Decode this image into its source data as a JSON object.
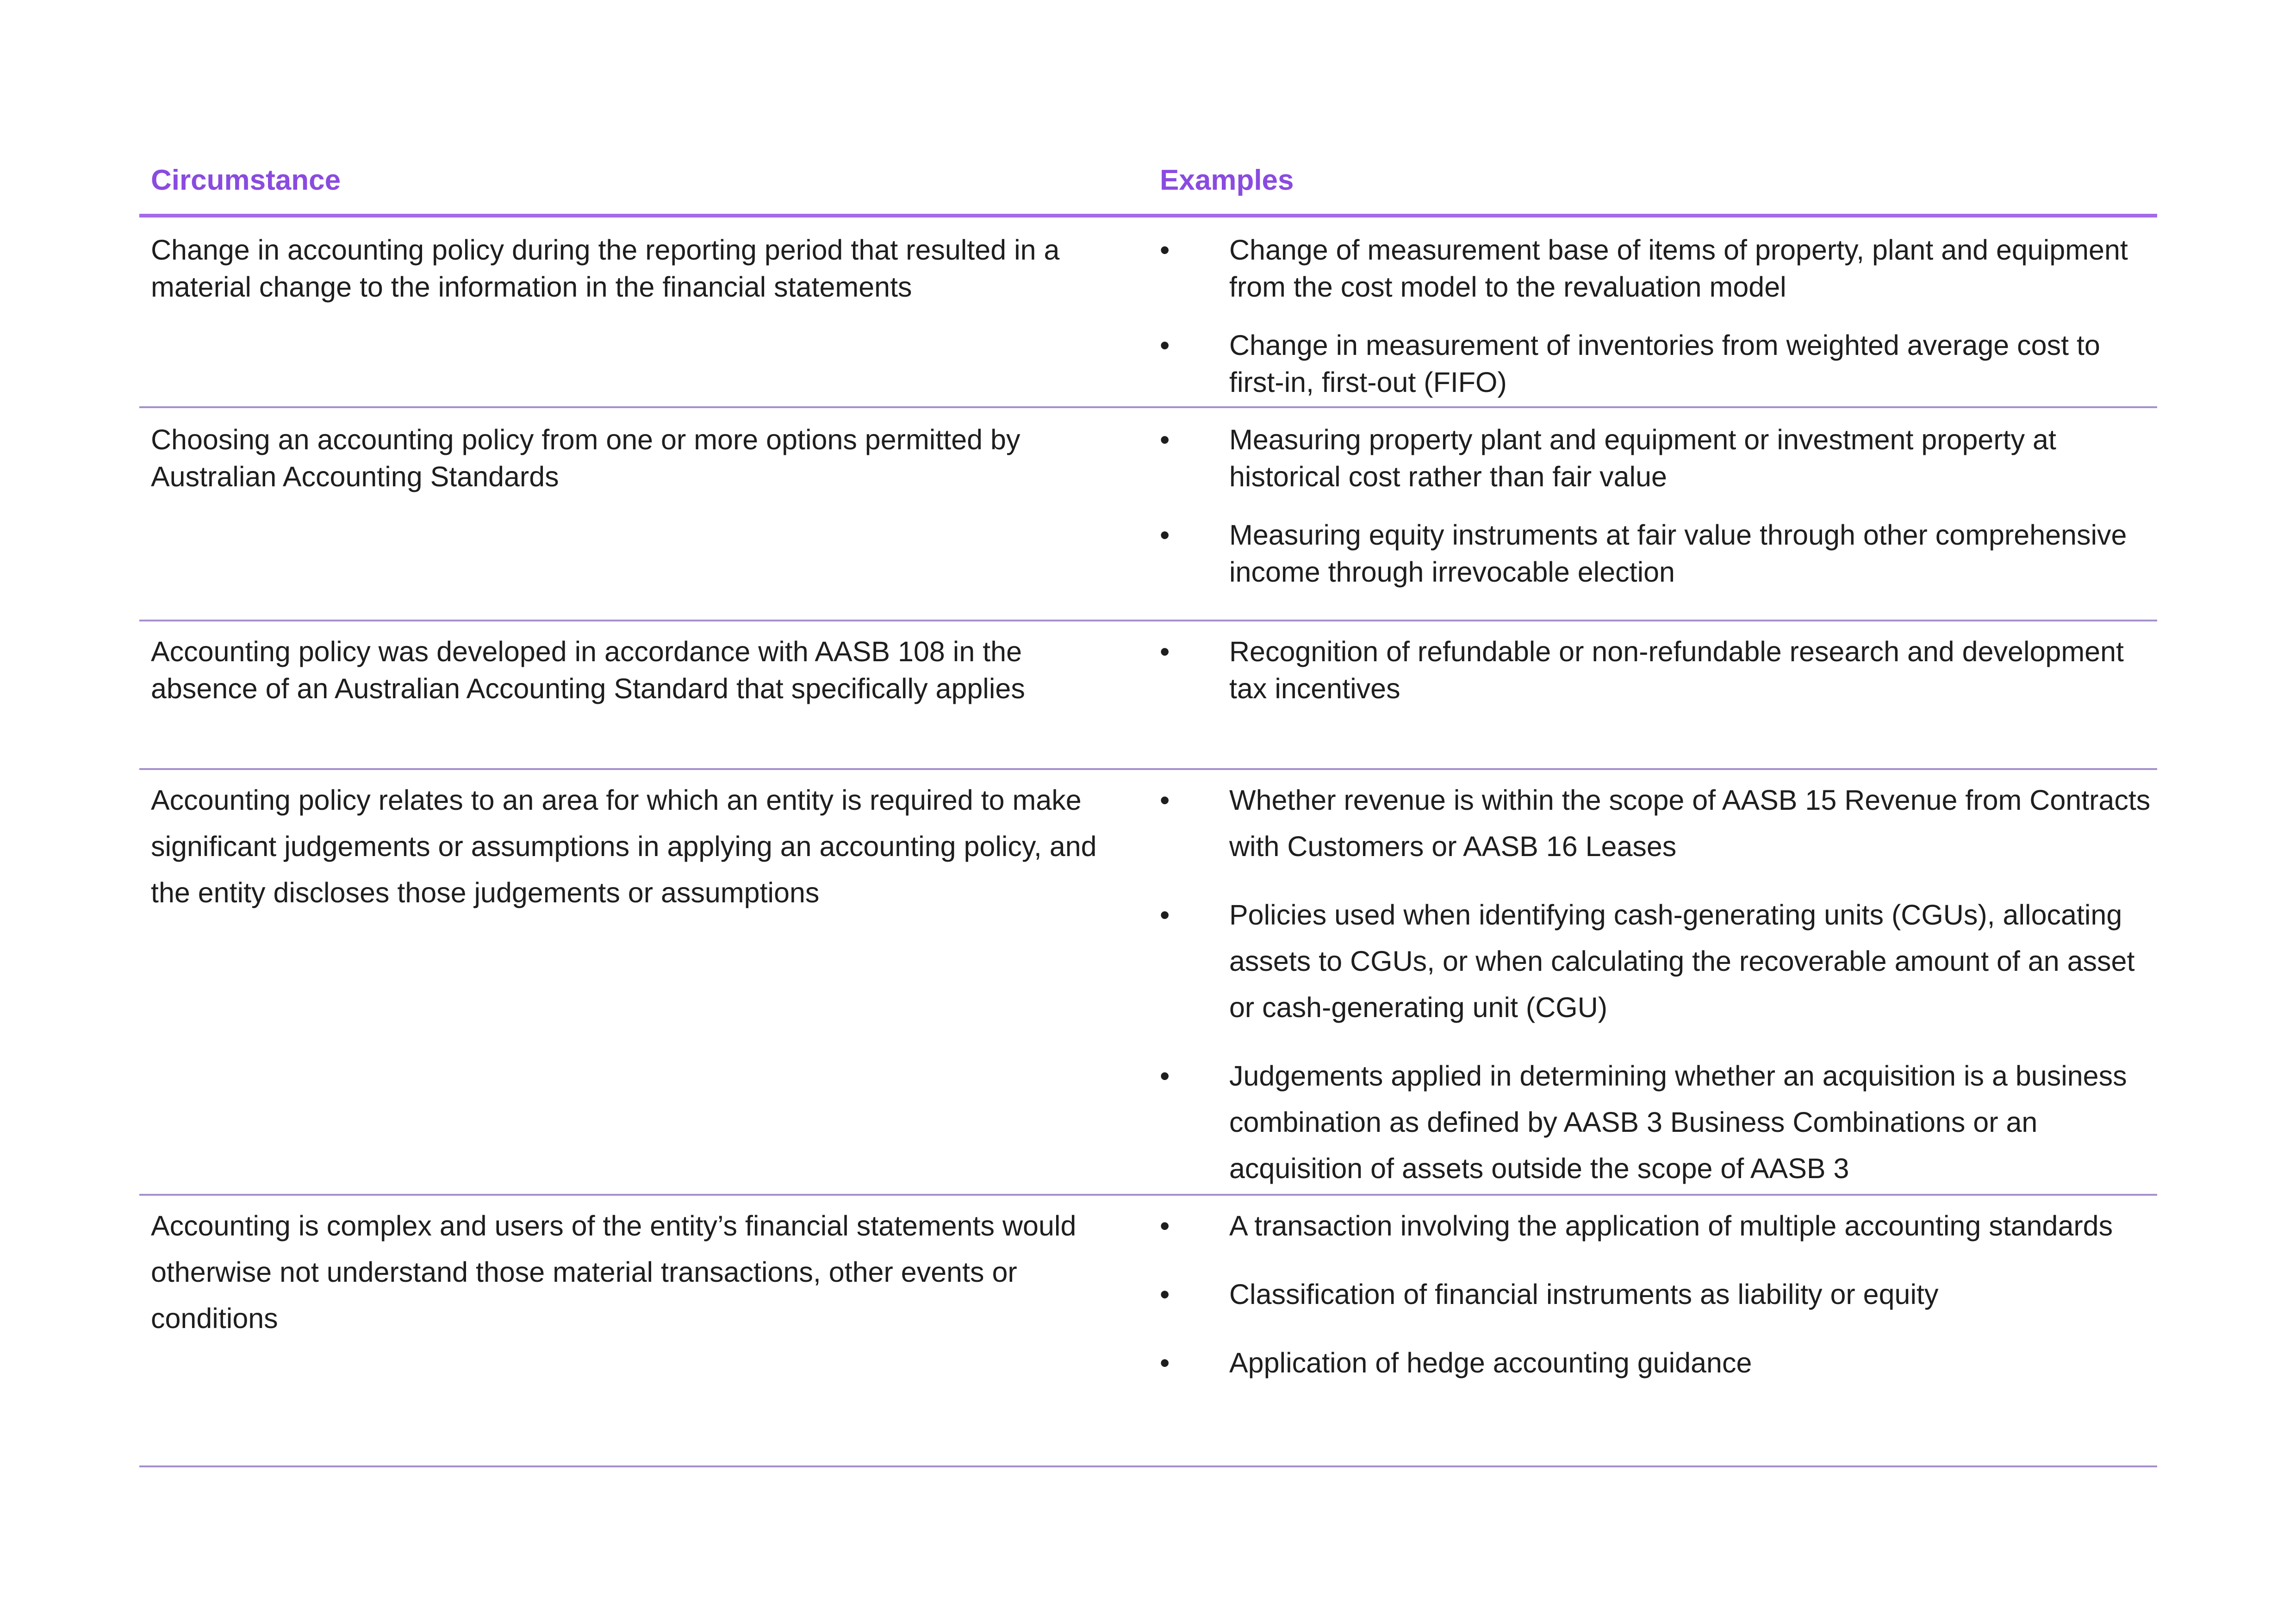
{
  "table": {
    "headers": {
      "circumstance": "Circumstance",
      "examples": "Examples"
    },
    "bullet": "•",
    "rows": [
      {
        "circumstance": "Change in accounting policy during the reporting period that resulted in a material change to the information in the financial statements",
        "examples": [
          "Change of measurement base of items of property, plant and equipment from the cost model to the revaluation model",
          "Change in measurement of inventories from weighted average cost to first-in, first-out (FIFO)"
        ]
      },
      {
        "circumstance": "Choosing an accounting policy from one or more options permitted by Australian Accounting Standards",
        "examples": [
          "Measuring property plant and equipment or investment property at historical cost rather than fair value",
          "Measuring equity instruments at fair value through other comprehensive income through irrevocable election"
        ]
      },
      {
        "circumstance": "Accounting policy was developed in accordance with AASB 108 in the absence of an Australian Accounting Standard that specifically applies",
        "examples": [
          "Recognition of refundable or non-refundable research and development tax incentives"
        ]
      },
      {
        "circumstance": "Accounting policy relates to an area for which an entity is required to make significant judgements or assumptions in applying an accounting policy, and the entity discloses those judgements or assumptions",
        "examples": [
          "Whether revenue is within the scope of AASB 15 Revenue from Contracts with Customers or AASB 16 Leases",
          "Policies used when identifying cash-generating units (CGUs), allocating assets to CGUs, or when calculating the recoverable amount of an asset or cash-generating unit (CGU)",
          "Judgements applied in determining whether an acquisition is a business combination as defined by AASB 3 Business Combinations or an acquisition of assets outside the scope of AASB 3"
        ]
      },
      {
        "circumstance": "Accounting is complex and users of the entity’s financial statements would otherwise not understand those material transactions, other events or conditions",
        "examples": [
          "A transaction involving the application of multiple accounting standards",
          "Classification of financial instruments as liability or equity",
          "Application of hedge accounting guidance"
        ]
      }
    ]
  }
}
